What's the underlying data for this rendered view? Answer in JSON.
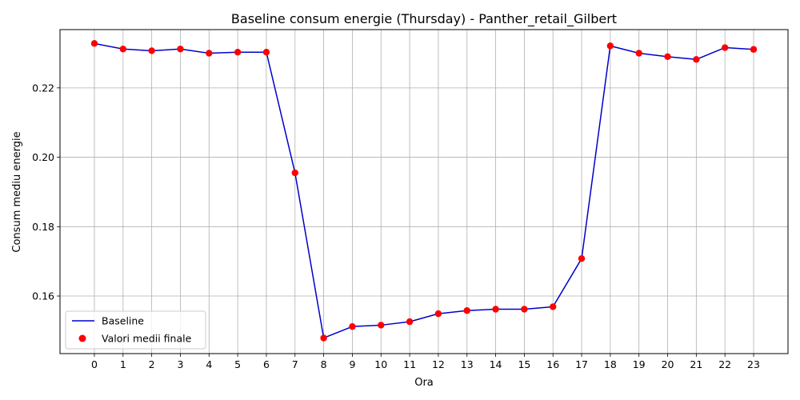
{
  "chart_data": {
    "type": "line",
    "title": "Baseline consum energie (Thursday) - Panther_retail_Gilbert",
    "xlabel": "Ora",
    "ylabel": "Consum mediu energie",
    "x": [
      0,
      1,
      2,
      3,
      4,
      5,
      6,
      7,
      8,
      9,
      10,
      11,
      12,
      13,
      14,
      15,
      16,
      17,
      18,
      19,
      20,
      21,
      22,
      23
    ],
    "x_tick_labels": [
      "0",
      "1",
      "2",
      "3",
      "4",
      "5",
      "6",
      "7",
      "8",
      "9",
      "10",
      "11",
      "12",
      "13",
      "14",
      "15",
      "16",
      "17",
      "18",
      "19",
      "20",
      "21",
      "22",
      "23"
    ],
    "y_tick_values": [
      0.16,
      0.18,
      0.2,
      0.22
    ],
    "y_tick_labels": [
      "0.16",
      "0.18",
      "0.20",
      "0.22"
    ],
    "xlim": [
      -1.2,
      24.2
    ],
    "ylim": [
      0.1434,
      0.2368
    ],
    "grid": true,
    "legend_position": "lower-left",
    "series": [
      {
        "name": "Baseline",
        "kind": "line",
        "color": "#0000cc",
        "values": [
          0.2328,
          0.2312,
          0.2307,
          0.2312,
          0.23,
          0.2303,
          0.2303,
          0.1955,
          0.1479,
          0.1512,
          0.1516,
          0.1526,
          0.1549,
          0.1558,
          0.1562,
          0.1562,
          0.1569,
          0.1708,
          0.2321,
          0.23,
          0.229,
          0.2282,
          0.2316,
          0.2311
        ]
      },
      {
        "name": "Valori medii finale",
        "kind": "scatter",
        "color": "#ff0000",
        "values": [
          0.2328,
          0.2312,
          0.2307,
          0.2312,
          0.23,
          0.2303,
          0.2303,
          0.1955,
          0.1479,
          0.1512,
          0.1516,
          0.1526,
          0.1549,
          0.1558,
          0.1562,
          0.1562,
          0.1569,
          0.1708,
          0.2321,
          0.23,
          0.229,
          0.2282,
          0.2316,
          0.2311
        ]
      }
    ]
  }
}
